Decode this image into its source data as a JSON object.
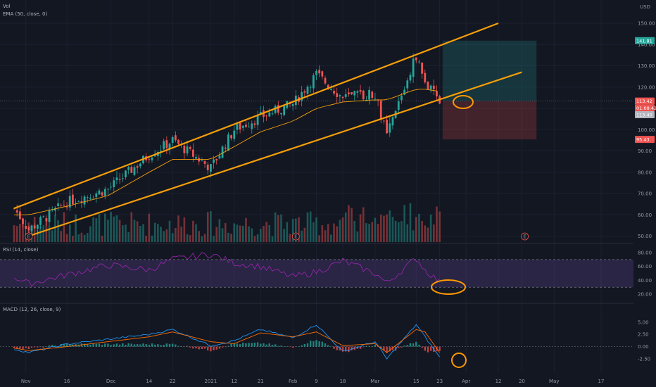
{
  "chart_data": [
    {
      "type": "candlestick",
      "panel": "price",
      "indicator_labels": [
        "Vol",
        "EMA (50, close, 0)"
      ],
      "currency": "USD",
      "ylim": [
        45,
        156
      ],
      "y_ticks": [
        50,
        60,
        70,
        80,
        90,
        100,
        110,
        120,
        130,
        140,
        150
      ],
      "x_ticks": [
        "Nov",
        "16",
        "Dec",
        "14",
        "22",
        "2021",
        "12",
        "21",
        "Feb",
        "9",
        "18",
        "Mar",
        "15",
        "23",
        "Apr",
        "12",
        "20",
        "May",
        "17"
      ],
      "ohlc_keypoints": {
        "x": [
          "Oct 29",
          "Nov 3",
          "Nov 16",
          "Nov 30",
          "Dec 14",
          "Dec 22",
          "Jan 4",
          "Jan 12",
          "Jan 21",
          "Feb 1",
          "Feb 9",
          "Feb 18",
          "Mar 1",
          "Mar 5",
          "Mar 15",
          "Mar 18",
          "Mar 23"
        ],
        "close": [
          63,
          53,
          66,
          72,
          88,
          95,
          82,
          100,
          106,
          112,
          126,
          115,
          117,
          97,
          135,
          122,
          113
        ]
      },
      "ema_50_keypoints": [
        60,
        60,
        64,
        69,
        80,
        86,
        86,
        92,
        99,
        104,
        110,
        113,
        114,
        114,
        119,
        119,
        118
      ],
      "price_labels": [
        {
          "label": "141.81",
          "color": "#26a69a"
        },
        {
          "label": "113.42",
          "color": "#ef5350"
        },
        {
          "label": "01:08:42",
          "color": "#ef5350"
        },
        {
          "label": "113.40",
          "color": "#b2b5be"
        },
        {
          "label": "95.43",
          "color": "#ef5350"
        }
      ],
      "position": {
        "entry": 113.42,
        "target": 141.81,
        "stop": 95.43
      },
      "channel_lines": {
        "upper": [
          [
            "Oct 29",
            63
          ],
          [
            "Apr 12",
            150
          ]
        ],
        "lower": [
          [
            "Nov 3",
            50
          ],
          [
            "Apr 20",
            127
          ]
        ]
      },
      "earnings_markers": [
        "E",
        "E",
        "E"
      ],
      "volume": "histogram"
    },
    {
      "type": "line",
      "panel": "rsi",
      "title": "RSI (14, close)",
      "ylim": [
        15,
        90
      ],
      "y_ticks": [
        20,
        40,
        60,
        80
      ],
      "bands": [
        30,
        70
      ],
      "values": [
        45,
        35,
        48,
        62,
        55,
        70,
        78,
        65,
        60,
        45,
        52,
        68,
        50,
        36,
        72,
        55,
        38
      ]
    },
    {
      "type": "bar",
      "panel": "macd",
      "title": "MACD (12, 26, close, 9)",
      "ylim": [
        -4.5,
        6.5
      ],
      "y_ticks": [
        -2.5,
        0,
        2.5,
        5
      ],
      "macd_line": [
        -0.5,
        -1.2,
        0.5,
        1.5,
        2.5,
        3.5,
        0.2,
        1.2,
        3.5,
        1.8,
        4.5,
        -1.0,
        1.0,
        -2.5,
        4.5,
        2.0,
        -2.2
      ],
      "signal_line": [
        -0.3,
        -0.8,
        0.0,
        1.0,
        2.0,
        3.0,
        1.0,
        0.6,
        2.8,
        2.0,
        3.0,
        0.2,
        0.6,
        -1.2,
        3.5,
        3.0,
        -1.2
      ]
    }
  ],
  "colors": {
    "background": "#131722",
    "up": "#26a69a",
    "down": "#ef5350",
    "channel": "#f59e0b",
    "ema": "#f59e0b",
    "rsi_line": "#9c27b0",
    "rsi_band": "#7e57c2",
    "macd": "#2196f3",
    "signal": "#ff6d00",
    "target_zone": "#26a69a",
    "stop_zone": "#ef5350",
    "annotation": "#ff9800"
  }
}
